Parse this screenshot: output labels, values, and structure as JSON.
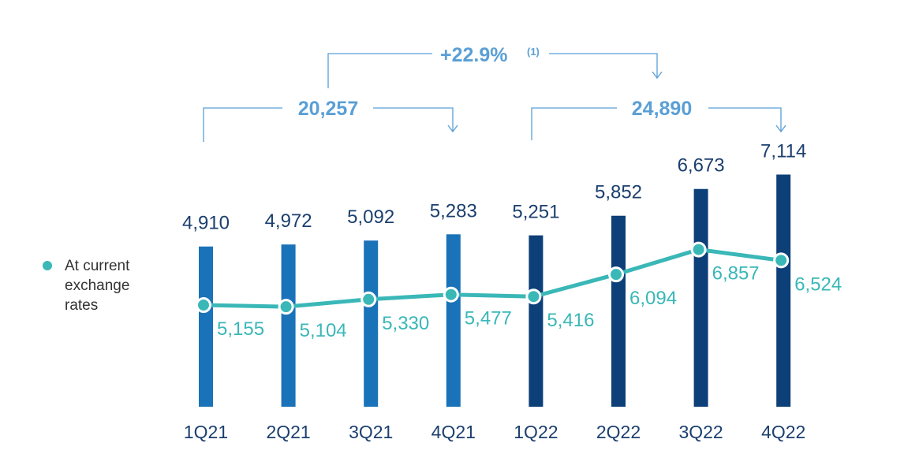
{
  "chart_data": {
    "type": "bar",
    "categories": [
      "1Q21",
      "2Q21",
      "3Q21",
      "4Q21",
      "1Q22",
      "2Q22",
      "3Q22",
      "4Q22"
    ],
    "series": [
      {
        "values": [
          4910,
          4972,
          5092,
          5283,
          5251,
          5852,
          6673,
          7114
        ]
      },
      {
        "name": "At current exchange rates",
        "type": "line",
        "values": [
          5155,
          5104,
          5330,
          5477,
          5416,
          6094,
          6857,
          6524
        ]
      }
    ],
    "bar_labels": [
      "4,910",
      "4,972",
      "5,092",
      "5,283",
      "5,251",
      "5,852",
      "6,673",
      "7,114"
    ],
    "line_labels": [
      "5,155",
      "5,104",
      "5,330",
      "5,477",
      "5,416",
      "6,094",
      "6,857",
      "6,524"
    ],
    "bar_colors": [
      "#1a72b8",
      "#1a72b8",
      "#1a72b8",
      "#1a72b8",
      "#0d3f78",
      "#0d3f78",
      "#0d3f78",
      "#0d3f78"
    ],
    "line_color": "#3ab7b7",
    "annotations": {
      "growth": {
        "text": "+22.9%",
        "superscript": "(1)"
      },
      "total_2021": "20,257",
      "total_2022": "24,890"
    },
    "legend": {
      "label_lines": [
        "At current",
        "exchange",
        "rates"
      ],
      "position": "left"
    },
    "grid": false
  }
}
